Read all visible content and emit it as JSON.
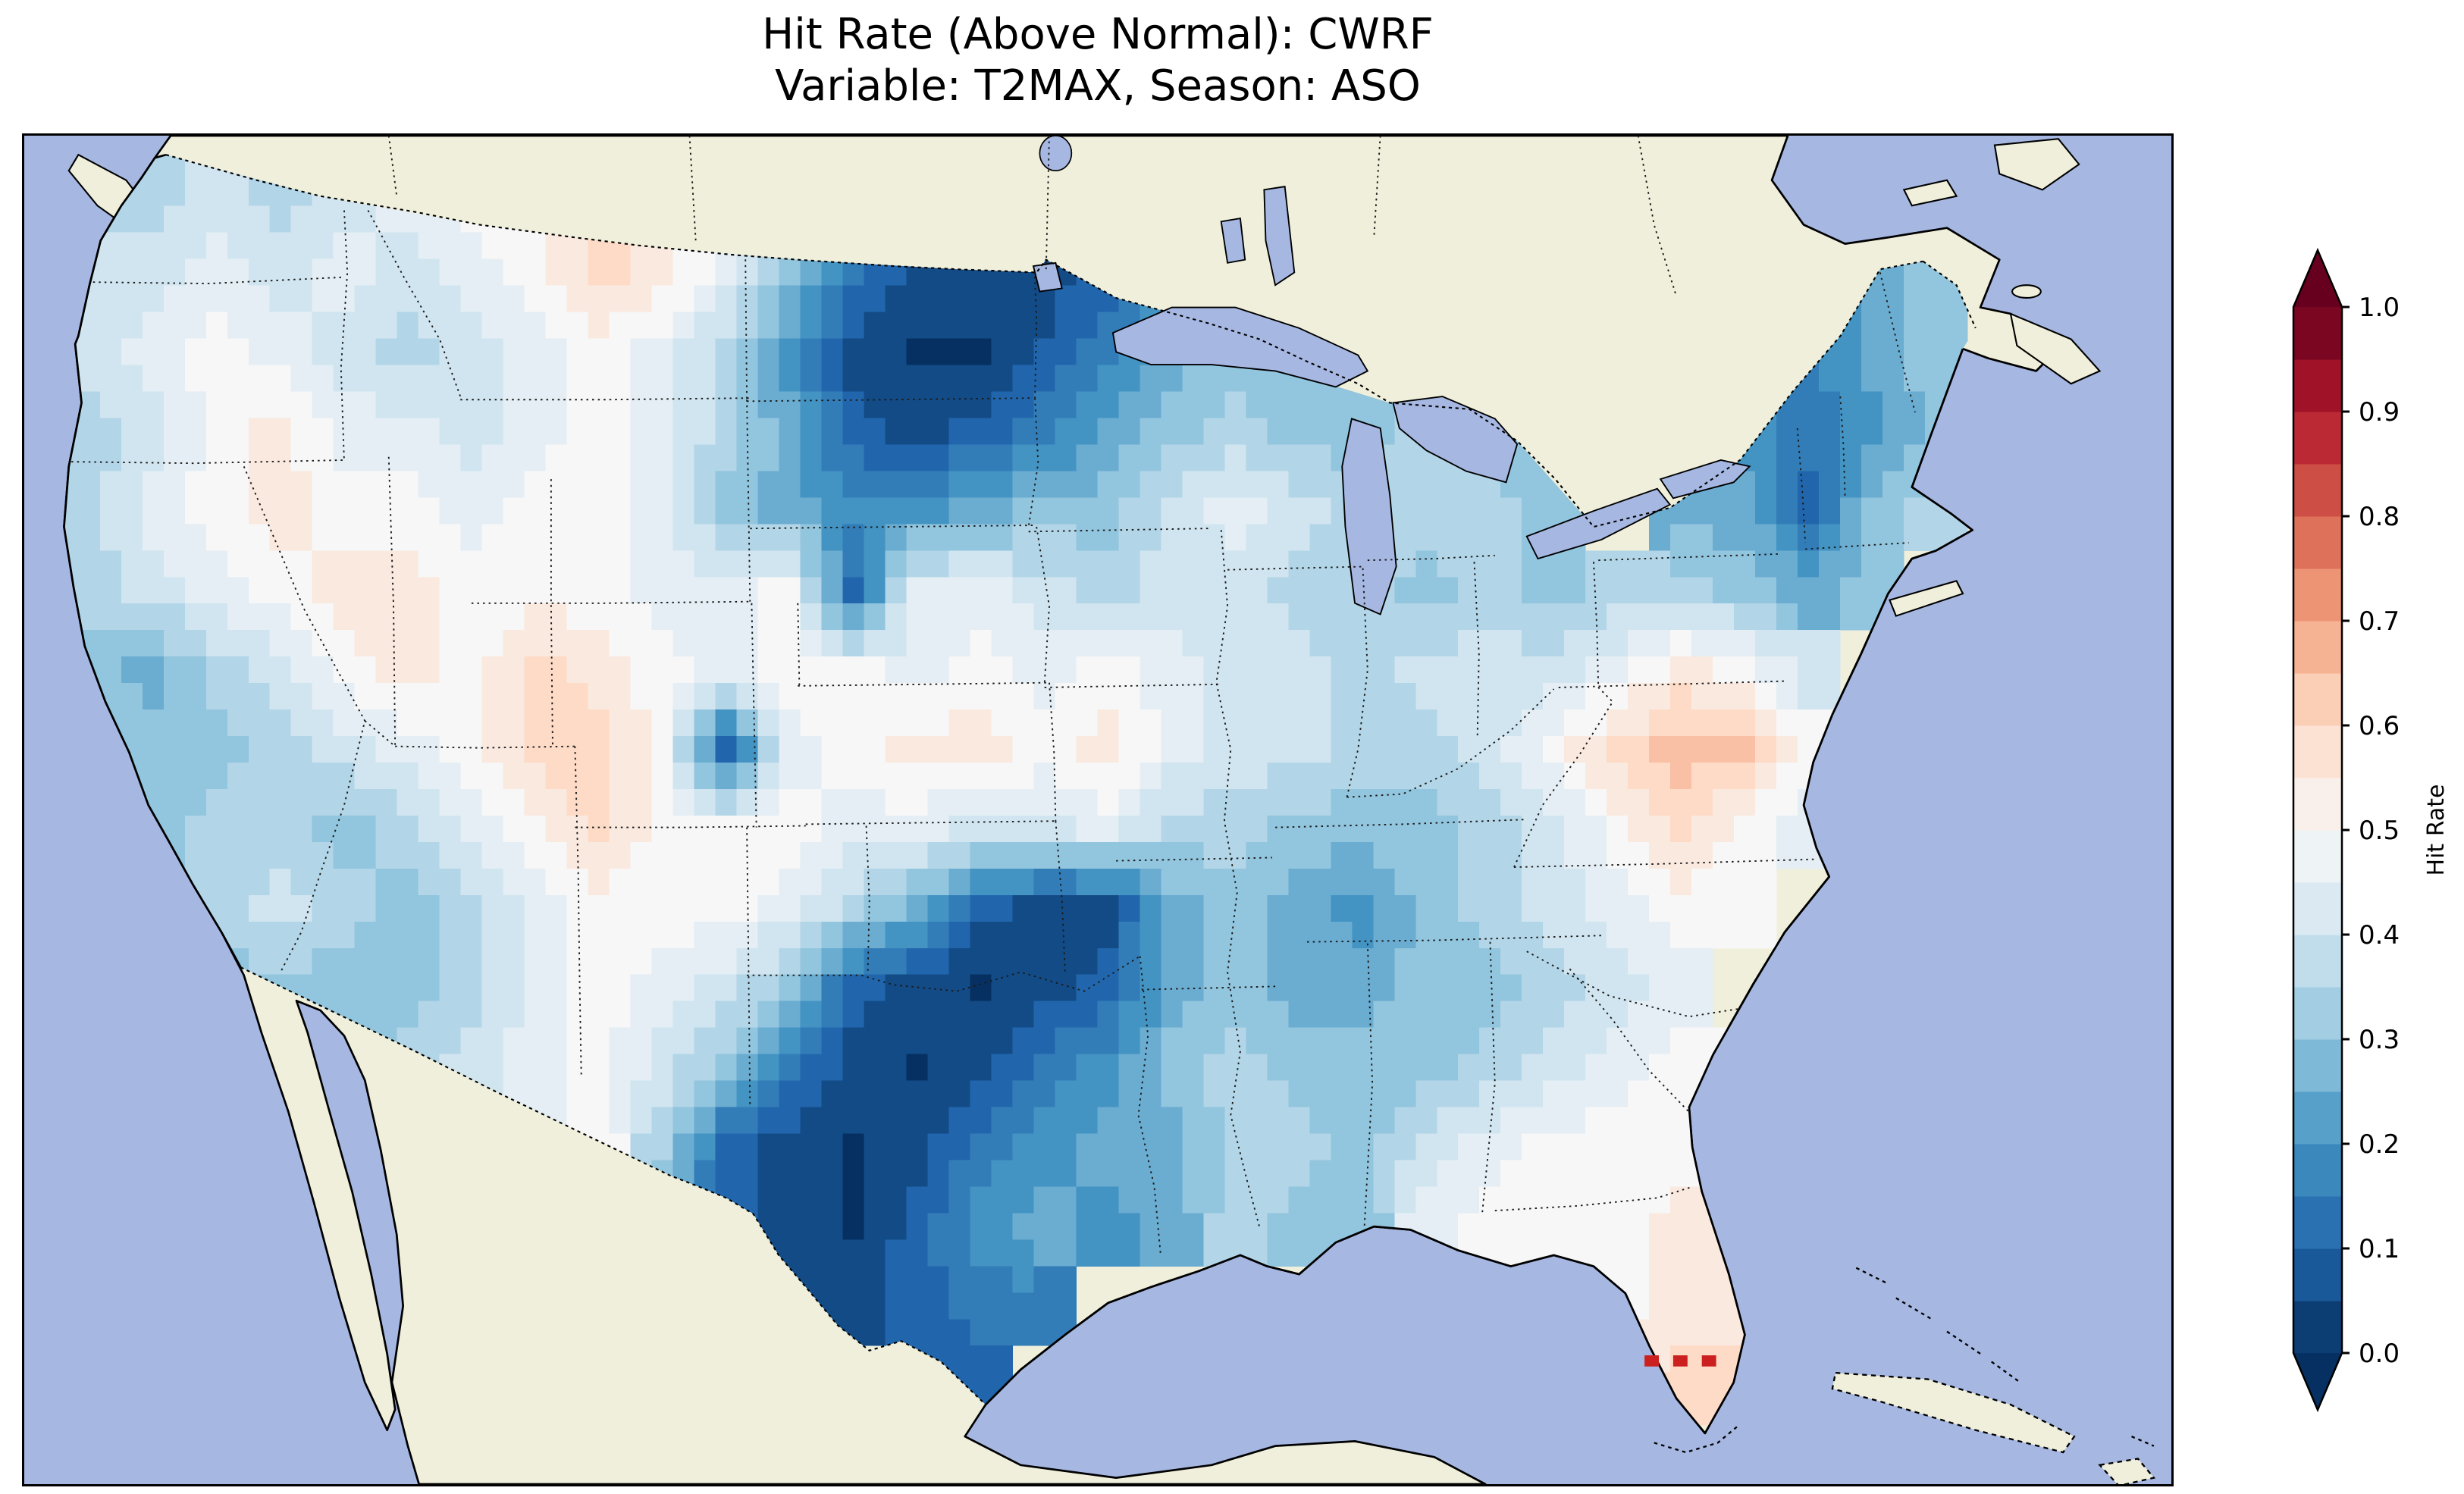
{
  "figure": {
    "title_line1": "Hit Rate (Above Normal): CWRF",
    "title_line2": "Variable: T2MAX, Season: ASO"
  },
  "colorbar": {
    "label": "Hit Rate",
    "tick_labels": [
      "0.0",
      "0.1",
      "0.2",
      "0.3",
      "0.4",
      "0.5",
      "0.6",
      "0.7",
      "0.8",
      "0.9",
      "1.0"
    ],
    "min": 0.0,
    "max": 1.0,
    "extend": "both"
  },
  "colors": {
    "ocean": "#a6b7e2",
    "land": "#efefdb",
    "coastline": "#000000",
    "border_dotted": "#1a1a1a",
    "red_marker": "#cc1f1f",
    "background": "#ffffff"
  },
  "colormap": {
    "name": "RdBu_r",
    "anchors": [
      "#053061",
      "#2166ac",
      "#4393c3",
      "#92c5de",
      "#d1e5f0",
      "#f7f7f7",
      "#fddbc7",
      "#f4a582",
      "#d6604d",
      "#b2182b",
      "#67001f"
    ],
    "quantize_step": 0.05
  },
  "chart_data": {
    "type": "heatmap",
    "title": "Hit Rate (Above Normal): CWRF",
    "subtitle": "Variable: T2MAX, Season: ASO",
    "model": "CWRF",
    "metric": "Hit Rate (Above Normal)",
    "variable": "T2MAX",
    "season": "ASO",
    "legend_label": "Hit Rate",
    "value_range": [
      0.0,
      1.0
    ],
    "region": "Contiguous United States",
    "grid": {
      "note": "Hit-rate values estimated from the map on a 30x16 grid (columns west-to-east, rows north-to-south); null = outside the data region.",
      "cols": 30,
      "rows": 16,
      "values": [
        [
          0.35,
          0.35,
          0.4,
          0.35,
          0.4,
          0.45,
          0.5,
          0.5,
          0.6,
          0.55,
          0.45,
          0.3,
          0.15,
          0.05,
          0.05,
          0.05,
          null,
          null,
          null,
          null,
          null,
          null,
          null,
          null,
          null,
          null,
          null,
          null,
          0.25,
          0.3
        ],
        [
          0.4,
          0.4,
          0.45,
          0.4,
          0.45,
          0.4,
          0.45,
          0.5,
          0.6,
          0.55,
          0.45,
          0.3,
          0.15,
          0.05,
          0.05,
          0.05,
          0.1,
          0.25,
          0.3,
          0.3,
          null,
          null,
          null,
          null,
          null,
          null,
          0.2,
          0.15,
          0.25,
          0.3
        ],
        [
          0.4,
          0.45,
          0.5,
          0.45,
          0.4,
          0.35,
          0.4,
          0.45,
          0.5,
          0.45,
          0.35,
          0.2,
          0.05,
          0.02,
          0.02,
          0.08,
          0.15,
          0.25,
          0.3,
          0.3,
          0.3,
          null,
          null,
          null,
          null,
          null,
          0.2,
          0.15,
          0.25,
          0.3
        ],
        [
          0.35,
          0.4,
          0.5,
          0.55,
          0.45,
          0.45,
          0.4,
          0.45,
          0.5,
          0.45,
          0.35,
          0.25,
          0.1,
          0.05,
          0.1,
          0.15,
          0.25,
          0.3,
          0.35,
          0.3,
          0.3,
          0.35,
          0.3,
          0.3,
          null,
          0.2,
          0.2,
          0.15,
          0.2,
          0.3
        ],
        [
          0.35,
          0.45,
          0.5,
          0.55,
          0.5,
          0.5,
          0.45,
          0.5,
          0.5,
          0.45,
          0.3,
          0.25,
          0.2,
          0.2,
          0.25,
          0.3,
          0.3,
          0.4,
          0.45,
          0.4,
          0.35,
          0.35,
          0.35,
          0.3,
          null,
          0.25,
          0.25,
          0.1,
          0.3,
          0.35
        ],
        [
          0.35,
          0.4,
          0.45,
          0.5,
          0.55,
          0.55,
          0.5,
          0.5,
          0.5,
          0.45,
          0.45,
          0.5,
          0.1,
          0.45,
          0.45,
          0.4,
          0.35,
          0.4,
          0.4,
          0.35,
          0.35,
          0.3,
          0.35,
          0.3,
          0.35,
          0.35,
          0.3,
          0.25,
          0.3,
          null
        ],
        [
          0.3,
          0.25,
          0.35,
          0.4,
          0.5,
          0.55,
          0.5,
          0.6,
          0.55,
          0.5,
          0.45,
          0.5,
          0.5,
          0.45,
          0.5,
          0.45,
          0.5,
          0.45,
          0.4,
          0.4,
          0.35,
          0.4,
          0.4,
          0.4,
          0.45,
          0.55,
          0.5,
          0.4,
          null,
          null
        ],
        [
          0.3,
          0.3,
          0.3,
          0.35,
          0.4,
          0.45,
          0.5,
          0.6,
          0.6,
          0.5,
          0.1,
          0.45,
          0.5,
          0.55,
          0.55,
          0.5,
          0.55,
          0.45,
          0.4,
          0.4,
          0.35,
          0.35,
          0.4,
          0.5,
          0.6,
          0.65,
          0.65,
          0.5,
          null,
          null
        ],
        [
          0.3,
          0.3,
          0.35,
          0.35,
          0.3,
          0.35,
          0.45,
          0.5,
          0.6,
          0.5,
          0.5,
          0.5,
          0.45,
          0.45,
          0.4,
          0.4,
          0.45,
          0.35,
          0.35,
          0.3,
          0.3,
          0.3,
          0.35,
          0.4,
          0.5,
          0.6,
          0.5,
          0.45,
          null,
          null
        ],
        [
          null,
          0.3,
          0.35,
          0.4,
          0.35,
          0.3,
          0.35,
          0.45,
          0.5,
          0.5,
          0.5,
          0.45,
          0.35,
          0.25,
          0.1,
          0.05,
          0.05,
          0.25,
          0.3,
          0.25,
          0.2,
          0.3,
          0.35,
          0.4,
          0.45,
          0.5,
          0.5,
          null,
          null,
          null
        ],
        [
          null,
          null,
          0.3,
          0.3,
          0.3,
          0.3,
          0.35,
          0.45,
          0.5,
          0.45,
          0.4,
          0.3,
          0.1,
          0.05,
          0.02,
          0.05,
          0.1,
          0.25,
          0.3,
          0.25,
          0.25,
          0.3,
          0.3,
          0.35,
          0.4,
          0.45,
          null,
          null,
          null,
          null
        ],
        [
          null,
          null,
          null,
          null,
          0.3,
          0.35,
          0.4,
          0.45,
          0.5,
          0.4,
          0.3,
          0.15,
          0.05,
          0.02,
          0.05,
          0.15,
          0.2,
          0.3,
          0.35,
          0.3,
          0.3,
          0.3,
          0.35,
          0.4,
          0.45,
          0.5,
          0.5,
          null,
          null,
          null
        ],
        [
          null,
          null,
          null,
          null,
          null,
          null,
          null,
          0.45,
          0.5,
          0.35,
          0.1,
          0.05,
          0.02,
          0.05,
          0.15,
          0.2,
          0.25,
          0.25,
          0.35,
          0.35,
          0.3,
          0.4,
          0.45,
          0.5,
          0.5,
          0.5,
          0.5,
          null,
          null,
          null
        ],
        [
          null,
          null,
          null,
          null,
          null,
          null,
          null,
          null,
          null,
          0.2,
          0.1,
          0.05,
          0.02,
          0.1,
          0.2,
          0.25,
          0.2,
          0.25,
          0.35,
          0.3,
          0.3,
          0.45,
          0.5,
          0.5,
          0.5,
          0.55,
          0.55,
          null,
          null,
          null
        ],
        [
          null,
          null,
          null,
          null,
          null,
          null,
          null,
          null,
          null,
          null,
          null,
          0.05,
          0.05,
          0.1,
          0.15,
          0.15,
          null,
          null,
          null,
          null,
          null,
          null,
          null,
          0.5,
          0.5,
          0.55,
          0.55,
          null,
          null,
          null
        ],
        [
          null,
          null,
          null,
          null,
          null,
          null,
          null,
          null,
          null,
          null,
          null,
          null,
          null,
          0.1,
          0.1,
          null,
          null,
          null,
          null,
          null,
          null,
          null,
          null,
          null,
          0.55,
          0.6,
          0.6,
          null,
          null,
          null
        ]
      ]
    },
    "red_dash_markers": {
      "count": 3,
      "location": "south of Florida peninsula"
    }
  }
}
